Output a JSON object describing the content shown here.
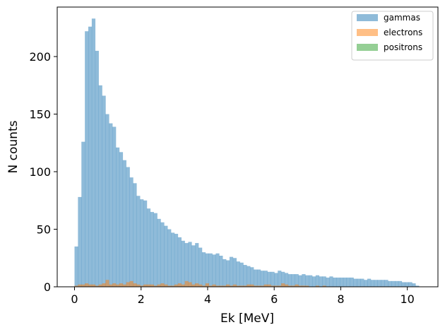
{
  "chart_data": {
    "type": "bar",
    "title": "",
    "xlabel": "Ek [MeV]",
    "ylabel": "N counts",
    "xlim": [
      -0.52,
      10.92
    ],
    "ylim": [
      0,
      243
    ],
    "xticks": [
      0,
      2,
      4,
      6,
      8,
      10
    ],
    "yticks": [
      0,
      50,
      100,
      150,
      200
    ],
    "grid": false,
    "legend_position": "top-right",
    "bin_start": 0.0,
    "bin_width": 0.1035,
    "series": [
      {
        "name": "gammas",
        "color": "#1f77b4",
        "opacity": 0.5,
        "values": [
          35,
          78,
          126,
          222,
          226,
          233,
          205,
          175,
          166,
          150,
          142,
          139,
          121,
          117,
          110,
          104,
          95,
          90,
          79,
          76,
          75,
          68,
          65,
          64,
          59,
          56,
          53,
          50,
          47,
          46,
          43,
          40,
          38,
          39,
          36,
          38,
          34,
          30,
          29,
          29,
          28,
          29,
          27,
          24,
          23,
          26,
          25,
          22,
          21,
          19,
          18,
          17,
          15,
          15,
          14,
          14,
          13,
          13,
          12,
          14,
          13,
          12,
          11,
          11,
          11,
          10,
          11,
          10,
          10,
          9,
          10,
          9,
          9,
          8,
          9,
          8,
          8,
          8,
          8,
          8,
          8,
          7,
          7,
          7,
          6,
          7,
          6,
          6,
          6,
          6,
          6,
          5,
          5,
          5,
          5,
          4,
          4,
          4,
          3,
          1
        ]
      },
      {
        "name": "electrons",
        "color": "#ff7f0e",
        "opacity": 0.5,
        "values": [
          1,
          2,
          2,
          3,
          2,
          2,
          1,
          2,
          3,
          6,
          2,
          3,
          2,
          3,
          2,
          4,
          5,
          3,
          2,
          1,
          2,
          2,
          2,
          1,
          2,
          3,
          2,
          1,
          1,
          2,
          3,
          2,
          5,
          4,
          2,
          3,
          2,
          1,
          3,
          1,
          2,
          1,
          1,
          1,
          2,
          1,
          2,
          1,
          1,
          1,
          2,
          2,
          1,
          1,
          1,
          2,
          2,
          1,
          1,
          1,
          3,
          2,
          1,
          1,
          2,
          1,
          1,
          1,
          0,
          0,
          1,
          0,
          1,
          0,
          0,
          0,
          0,
          0,
          0,
          0,
          0,
          0,
          0,
          0,
          0,
          0,
          0,
          0,
          0,
          0,
          0,
          0,
          0,
          0,
          0,
          0,
          0,
          0,
          0,
          0
        ]
      },
      {
        "name": "positrons",
        "color": "#2ca02c",
        "opacity": 0.5,
        "values": []
      }
    ]
  }
}
